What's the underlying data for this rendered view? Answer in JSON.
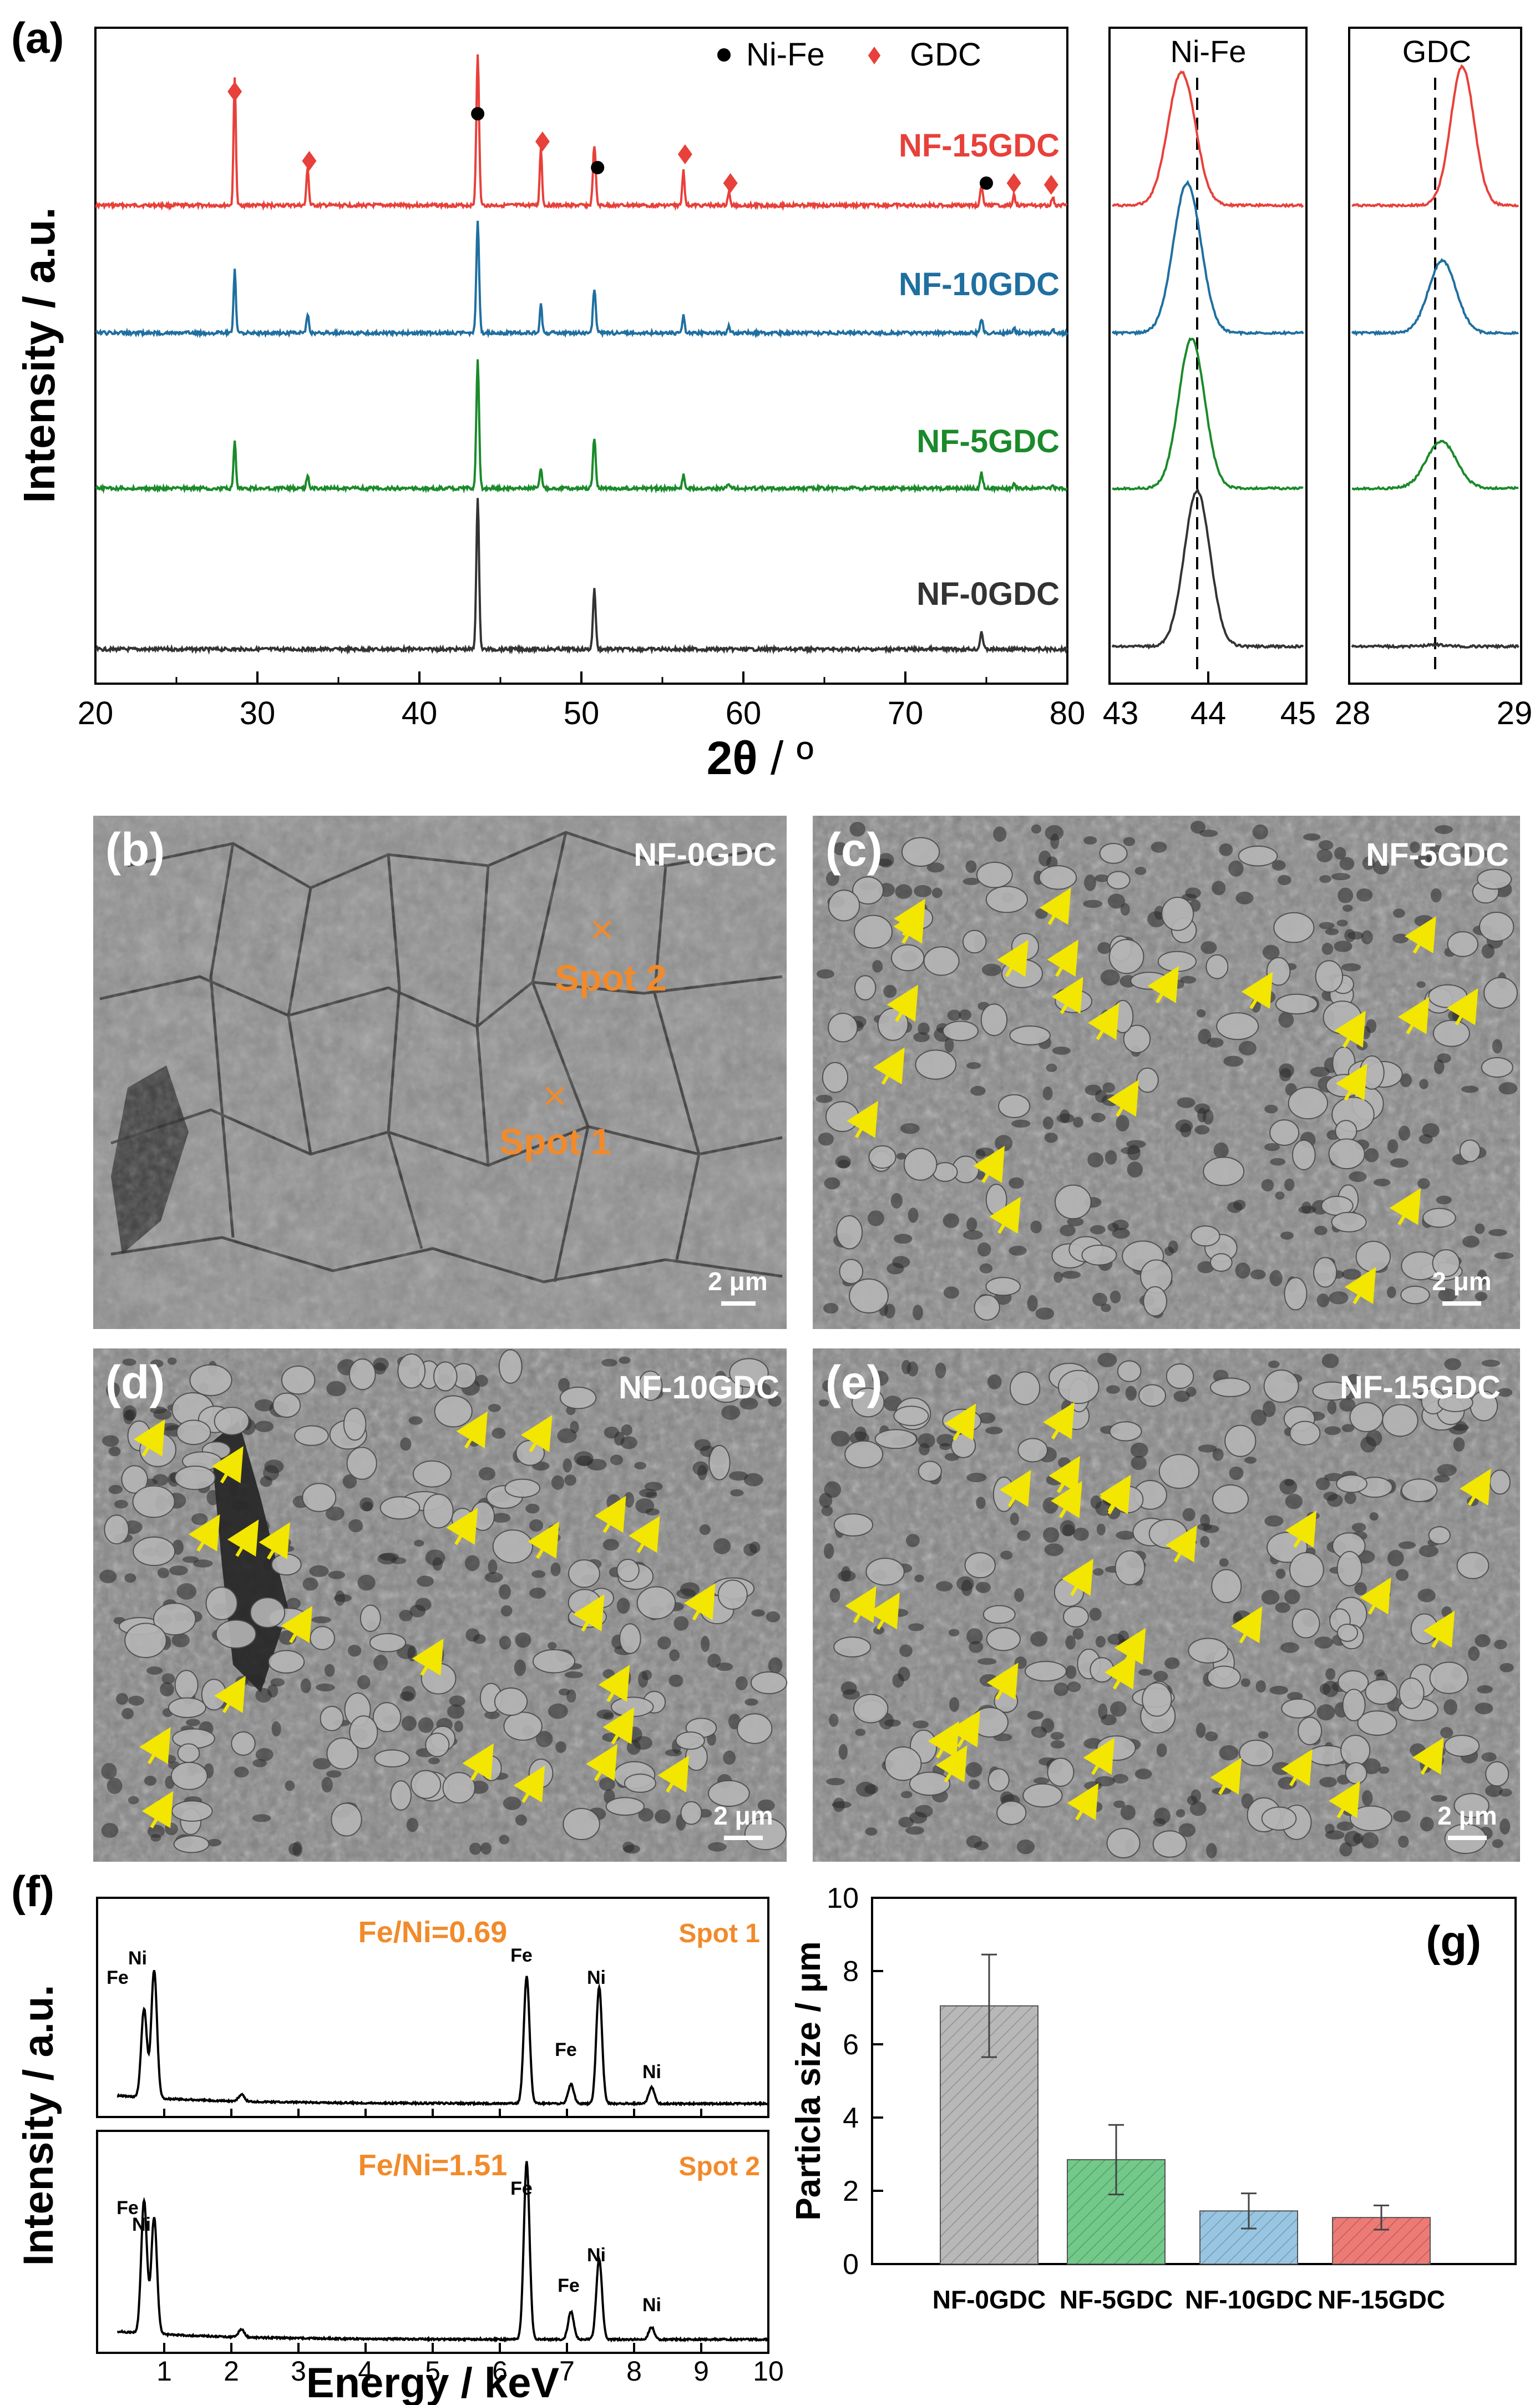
{
  "panel_labels": {
    "a": "(a)",
    "b": "(b)",
    "c": "(c)",
    "d": "(d)",
    "e": "(e)",
    "f": "(f)",
    "g": "(g)"
  },
  "colors": {
    "NF-0GDC": "#333333",
    "NF-5GDC": "#1a8a2a",
    "NF-10GDC": "#1f6fa0",
    "NF-15GDC": "#e8403a",
    "orange": "#f28a2a",
    "arrow": "#f3e600",
    "sem": "#8e8e8e"
  },
  "xrd": {
    "ylabel": "Intensity / a.u.",
    "xlabel_main": "2θ",
    "xlabel_unit": " / º",
    "legend": {
      "nife": "Ni-Fe",
      "gdc": "GDC"
    },
    "main_ticks": [
      "20",
      "30",
      "40",
      "50",
      "60",
      "70",
      "80"
    ],
    "inset1": {
      "title": "Ni-Fe",
      "ticks": [
        "43",
        "44",
        "45"
      ]
    },
    "inset2": {
      "title": "GDC",
      "ticks": [
        "28",
        "29"
      ]
    },
    "series": [
      {
        "name": "NF-15GDC",
        "color": "#e8403a"
      },
      {
        "name": "NF-10GDC",
        "color": "#1f6fa0"
      },
      {
        "name": "NF-5GDC",
        "color": "#1a8a2a"
      },
      {
        "name": "NF-0GDC",
        "color": "#333333"
      }
    ]
  },
  "sem": {
    "b": {
      "title": "NF-0GDC",
      "scale": "2 μm",
      "spot1": "Spot 1",
      "spot2": "Spot 2"
    },
    "c": {
      "title": "NF-5GDC",
      "scale": "2 μm"
    },
    "d": {
      "title": "NF-10GDC",
      "scale": "2 μm"
    },
    "e": {
      "title": "NF-15GDC",
      "scale": "2 μm"
    }
  },
  "eds": {
    "ylabel": "Intensity / a.u.",
    "xlabel": "Energy / keV",
    "ticks": [
      "1",
      "2",
      "3",
      "4",
      "5",
      "6",
      "7",
      "8",
      "9",
      "10"
    ],
    "spot1": {
      "ratio": "Fe/Ni=0.69",
      "spot": "Spot 1"
    },
    "spot2": {
      "ratio": "Fe/Ni=1.51",
      "spot": "Spot 2"
    },
    "fe": "Fe",
    "ni": "Ni"
  },
  "chart_data": {
    "type": "bar",
    "title": "",
    "ylabel": "Particla size / μm",
    "ylim": [
      0,
      10
    ],
    "yticks": [
      "0",
      "2",
      "4",
      "6",
      "8",
      "10"
    ],
    "categories": [
      "NF-0GDC",
      "NF-5GDC",
      "NF-10GDC",
      "NF-15GDC"
    ],
    "values": [
      7.05,
      2.85,
      1.45,
      1.27
    ],
    "errors": [
      1.4,
      0.95,
      0.48,
      0.33
    ],
    "colors": [
      "#b8b8b8",
      "#72c98a",
      "#98c6e2",
      "#ee7a76"
    ]
  }
}
